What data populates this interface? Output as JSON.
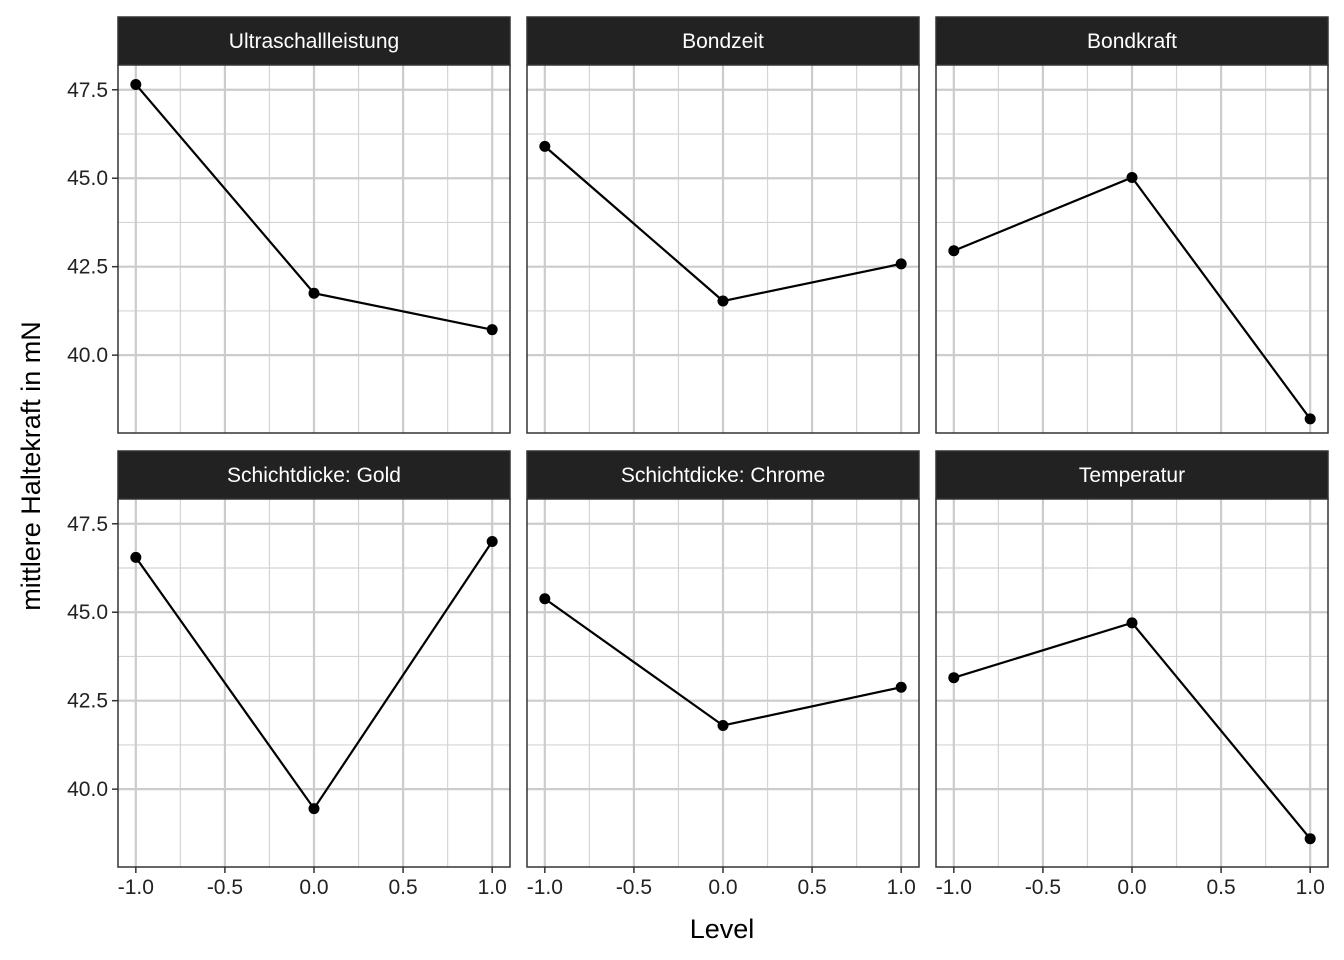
{
  "chart_data": {
    "type": "line",
    "xlabel": "Level",
    "ylabel": "mittlere Haltekraft in mN",
    "xlim": [
      -1.1,
      1.1
    ],
    "ylim": [
      37.8,
      48.2
    ],
    "x_ticks": [
      -1.0,
      -0.5,
      0.0,
      0.5,
      1.0
    ],
    "x_tick_labels": [
      "-1.0",
      "-0.5",
      "0.0",
      "0.5",
      "1.0"
    ],
    "y_ticks": [
      40.0,
      42.5,
      45.0,
      47.5
    ],
    "y_tick_labels": [
      "40.0",
      "42.5",
      "45.0",
      "47.5"
    ],
    "grid": true,
    "layout": {
      "rows": 2,
      "cols": 3
    },
    "series_color": "#000000",
    "strip_color": "#222222",
    "panels": [
      {
        "title": "Ultraschallleistung",
        "x": [
          -1,
          0,
          1
        ],
        "y": [
          47.65,
          41.75,
          40.72
        ]
      },
      {
        "title": "Bondzeit",
        "x": [
          -1,
          0,
          1
        ],
        "y": [
          45.9,
          41.53,
          42.58
        ]
      },
      {
        "title": "Bondkraft",
        "x": [
          -1,
          0,
          1
        ],
        "y": [
          42.95,
          45.02,
          38.2
        ]
      },
      {
        "title": "Schichtdicke: Gold",
        "x": [
          -1,
          0,
          1
        ],
        "y": [
          46.55,
          39.45,
          47.0
        ]
      },
      {
        "title": "Schichtdicke: Chrome",
        "x": [
          -1,
          0,
          1
        ],
        "y": [
          45.38,
          41.8,
          42.88
        ]
      },
      {
        "title": "Temperatur",
        "x": [
          -1,
          0,
          1
        ],
        "y": [
          43.15,
          44.7,
          38.6
        ]
      }
    ]
  }
}
